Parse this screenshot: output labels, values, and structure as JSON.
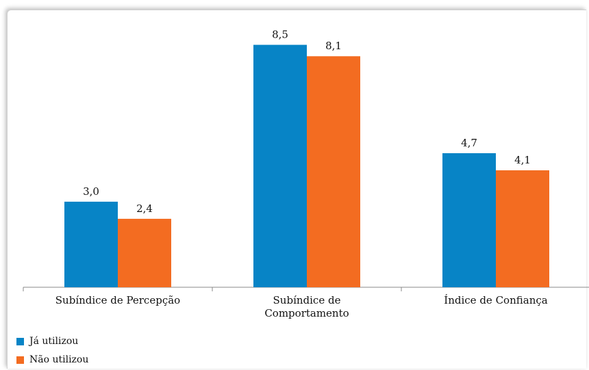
{
  "chart_data": {
    "type": "bar",
    "categories": [
      [
        "Subíndice de Percepção"
      ],
      [
        "Subíndice de",
        "Comportamento"
      ],
      [
        "Índice de Confiança"
      ]
    ],
    "series": [
      {
        "name": "Já utilizou",
        "color": "#0784c6",
        "values": [
          3.0,
          8.5,
          4.7
        ],
        "labels": [
          "3,0",
          "8,5",
          "4,7"
        ]
      },
      {
        "name": "Não utilizou",
        "color": "#f36c21",
        "values": [
          2.4,
          8.1,
          4.1
        ],
        "labels": [
          "2,4",
          "8,1",
          "4,1"
        ]
      }
    ],
    "ylim": [
      0,
      9
    ],
    "grid": false,
    "legend_position": "bottom-left"
  }
}
